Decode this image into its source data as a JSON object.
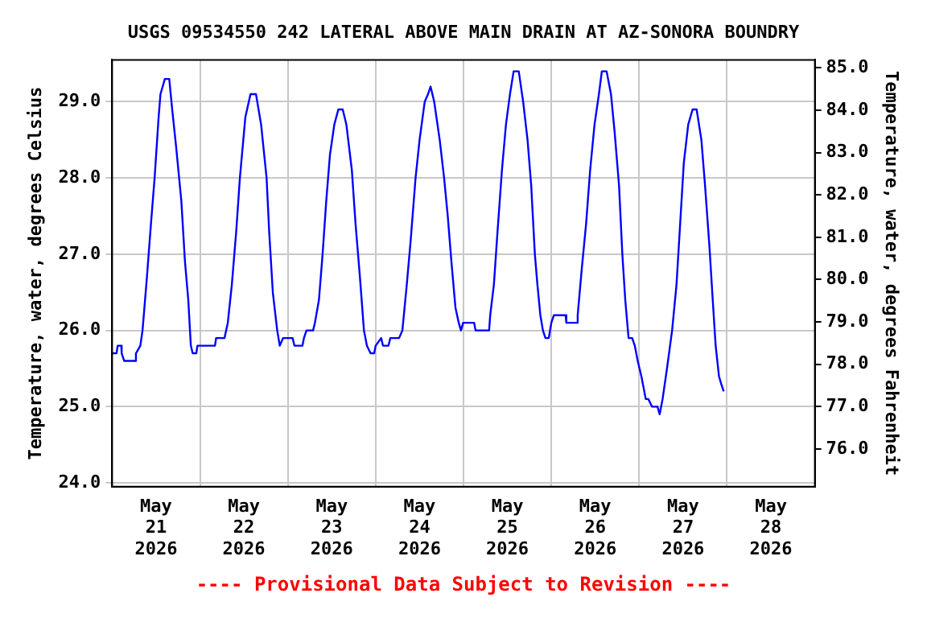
{
  "chart_data": {
    "type": "line",
    "title": "USGS 09534550 242 LATERAL ABOVE MAIN DRAIN AT AZ-SONORA BOUNDRY",
    "ylabel": "Temperature, water, degrees Celsius",
    "y2label": "Temperature, water, degrees Fahrenheit",
    "annotations": [
      "---- Provisional Data Subject to Revision ----"
    ],
    "x": [
      "2026-05-21T00:00",
      "2026-05-21T01:12",
      "2026-05-21T01:30",
      "2026-05-21T02:30",
      "2026-05-21T02:36",
      "2026-05-21T03:18",
      "2026-05-21T06:18",
      "2026-05-21T06:30",
      "2026-05-21T07:42",
      "2026-05-21T08:18",
      "2026-05-21T09:30",
      "2026-05-21T10:36",
      "2026-05-21T11:36",
      "2026-05-21T12:42",
      "2026-05-21T13:12",
      "2026-05-21T14:24",
      "2026-05-21T15:36",
      "2026-05-21T16:24",
      "2026-05-21T17:30",
      "2026-05-21T18:54",
      "2026-05-21T19:54",
      "2026-05-21T20:48",
      "2026-05-21T21:30",
      "2026-05-21T22:00",
      "2026-05-21T23:00",
      "2026-05-21T23:18",
      "2026-05-22T04:06",
      "2026-05-22T04:24",
      "2026-05-22T06:42",
      "2026-05-22T07:36",
      "2026-05-22T08:42",
      "2026-05-22T09:54",
      "2026-05-22T10:54",
      "2026-05-22T12:24",
      "2026-05-22T13:48",
      "2026-05-22T15:18",
      "2026-05-22T16:42",
      "2026-05-22T18:12",
      "2026-05-22T18:54",
      "2026-05-22T19:54",
      "2026-05-22T21:06",
      "2026-05-22T21:48",
      "2026-05-22T22:42",
      "2026-05-23T01:18",
      "2026-05-23T01:48",
      "2026-05-23T04:00",
      "2026-05-23T04:24",
      "2026-05-23T05:06",
      "2026-05-23T06:54",
      "2026-05-23T07:24",
      "2026-05-23T08:30",
      "2026-05-23T09:30",
      "2026-05-23T10:30",
      "2026-05-23T11:30",
      "2026-05-23T12:42",
      "2026-05-23T13:48",
      "2026-05-23T15:00",
      "2026-05-23T16:00",
      "2026-05-23T17:30",
      "2026-05-23T18:30",
      "2026-05-23T19:42",
      "2026-05-23T20:48",
      "2026-05-23T21:36",
      "2026-05-23T22:36",
      "2026-05-23T23:36",
      "2026-05-24T00:00",
      "2026-05-24T01:30",
      "2026-05-24T02:00",
      "2026-05-24T03:30",
      "2026-05-24T04:00",
      "2026-05-24T06:24",
      "2026-05-24T07:18",
      "2026-05-24T08:30",
      "2026-05-24T09:36",
      "2026-05-24T10:54",
      "2026-05-24T12:00",
      "2026-05-24T13:24",
      "2026-05-24T14:18",
      "2026-05-24T15:00",
      "2026-05-24T16:00",
      "2026-05-24T17:30",
      "2026-05-24T18:42",
      "2026-05-24T19:42",
      "2026-05-24T20:42",
      "2026-05-24T21:48",
      "2026-05-24T22:42",
      "2026-05-24T23:18",
      "2026-05-24T23:54",
      "2026-05-25T02:54",
      "2026-05-25T03:18",
      "2026-05-25T07:00",
      "2026-05-25T07:18",
      "2026-05-25T08:18",
      "2026-05-25T09:18",
      "2026-05-25T10:30",
      "2026-05-25T11:36",
      "2026-05-25T12:42",
      "2026-05-25T13:42",
      "2026-05-25T15:06",
      "2026-05-25T16:18",
      "2026-05-25T17:30",
      "2026-05-25T18:30",
      "2026-05-25T19:30",
      "2026-05-25T20:12",
      "2026-05-25T21:00",
      "2026-05-25T21:42",
      "2026-05-25T22:24",
      "2026-05-25T23:18",
      "2026-05-26T00:00",
      "2026-05-26T00:42",
      "2026-05-26T03:54",
      "2026-05-26T04:06",
      "2026-05-26T06:48",
      "2026-05-26T07:12",
      "2026-05-26T08:18",
      "2026-05-26T09:30",
      "2026-05-26T10:36",
      "2026-05-26T11:48",
      "2026-05-26T13:00",
      "2026-05-26T13:48",
      "2026-05-26T15:06",
      "2026-05-26T16:18",
      "2026-05-26T17:18",
      "2026-05-26T18:30",
      "2026-05-26T19:24",
      "2026-05-26T20:12",
      "2026-05-26T21:06",
      "2026-05-26T22:06",
      "2026-05-26T22:48",
      "2026-05-26T23:36",
      "2026-05-27T00:36",
      "2026-05-27T01:48",
      "2026-05-27T02:30",
      "2026-05-27T03:30",
      "2026-05-27T05:00",
      "2026-05-27T05:36",
      "2026-05-27T06:24",
      "2026-05-27T07:36",
      "2026-05-27T09:00",
      "2026-05-27T10:12",
      "2026-05-27T11:12",
      "2026-05-27T12:12",
      "2026-05-27T13:24",
      "2026-05-27T14:36",
      "2026-05-27T15:42",
      "2026-05-27T17:00",
      "2026-05-27T18:00",
      "2026-05-27T19:12",
      "2026-05-27T20:06",
      "2026-05-27T20:54",
      "2026-05-27T21:48",
      "2026-05-27T22:24",
      "2026-05-27T23:06"
    ],
    "series": [
      {
        "color": "#0000ff",
        "values": [
          25.7,
          25.7,
          25.8,
          25.8,
          25.7,
          25.6,
          25.6,
          25.7,
          25.8,
          26.0,
          26.7,
          27.4,
          28.0,
          28.8,
          29.1,
          29.3,
          29.3,
          28.9,
          28.4,
          27.7,
          26.9,
          26.4,
          25.8,
          25.7,
          25.7,
          25.8,
          25.8,
          25.9,
          25.9,
          26.1,
          26.6,
          27.3,
          28.0,
          28.8,
          29.1,
          29.1,
          28.7,
          28.0,
          27.3,
          26.5,
          26.0,
          25.8,
          25.9,
          25.9,
          25.8,
          25.8,
          25.9,
          26.0,
          26.0,
          26.1,
          26.4,
          27.0,
          27.7,
          28.3,
          28.7,
          28.9,
          28.9,
          28.7,
          28.1,
          27.4,
          26.7,
          26.0,
          25.8,
          25.7,
          25.7,
          25.8,
          25.9,
          25.8,
          25.8,
          25.9,
          25.9,
          26.0,
          26.6,
          27.2,
          28.0,
          28.5,
          29.0,
          29.1,
          29.2,
          29.0,
          28.5,
          28.0,
          27.5,
          26.9,
          26.3,
          26.1,
          26.0,
          26.1,
          26.1,
          26.0,
          26.0,
          26.2,
          26.6,
          27.3,
          28.1,
          28.7,
          29.1,
          29.4,
          29.4,
          29.0,
          28.5,
          27.9,
          27.0,
          26.6,
          26.2,
          26.0,
          25.9,
          25.9,
          26.1,
          26.2,
          26.2,
          26.1,
          26.1,
          26.2,
          26.8,
          27.4,
          28.1,
          28.7,
          29.1,
          29.4,
          29.4,
          29.1,
          28.6,
          27.9,
          27.0,
          26.4,
          25.9,
          25.9,
          25.8,
          25.6,
          25.4,
          25.1,
          25.1,
          25.0,
          25.0,
          24.9,
          25.1,
          25.5,
          26.0,
          26.6,
          27.4,
          28.2,
          28.7,
          28.9,
          28.9,
          28.5,
          27.9,
          27.1,
          26.4,
          25.8,
          25.4,
          25.3,
          25.2
        ]
      }
    ],
    "xlim": [
      "2026-05-21T00:00",
      "2026-05-29T00:00"
    ],
    "xticks": [
      {
        "value": "2026-05-21T12:00",
        "label": "May\n21\n2026"
      },
      {
        "value": "2026-05-22T00:00",
        "label": null
      },
      {
        "value": "2026-05-22T12:00",
        "label": "May\n22\n2026"
      },
      {
        "value": "2026-05-23T00:00",
        "label": null
      },
      {
        "value": "2026-05-23T12:00",
        "label": "May\n23\n2026"
      },
      {
        "value": "2026-05-24T00:00",
        "label": null
      },
      {
        "value": "2026-05-24T12:00",
        "label": "May\n24\n2026"
      },
      {
        "value": "2026-05-25T00:00",
        "label": null
      },
      {
        "value": "2026-05-25T12:00",
        "label": "May\n25\n2026"
      },
      {
        "value": "2026-05-26T00:00",
        "label": null
      },
      {
        "value": "2026-05-26T12:00",
        "label": "May\n26\n2026"
      },
      {
        "value": "2026-05-27T00:00",
        "label": null
      },
      {
        "value": "2026-05-27T12:00",
        "label": "May\n27\n2026"
      },
      {
        "value": "2026-05-28T00:00",
        "label": null
      },
      {
        "value": "2026-05-28T12:00",
        "label": "May\n28\n2026"
      }
    ],
    "ylim": [
      23.95,
      29.55
    ],
    "yticks": [
      {
        "value": 24,
        "label": "24.0"
      },
      {
        "value": 25,
        "label": "25.0"
      },
      {
        "value": 26,
        "label": "26.0"
      },
      {
        "value": 27,
        "label": "27.0"
      },
      {
        "value": 28,
        "label": "28.0"
      },
      {
        "value": 29,
        "label": "29.0"
      }
    ],
    "y2lim": [
      75.11,
      85.19
    ],
    "y2ticks": [
      {
        "value": 76,
        "label": "76.0"
      },
      {
        "value": 77,
        "label": "77.0"
      },
      {
        "value": 78,
        "label": "78.0"
      },
      {
        "value": 79,
        "label": "79.0"
      },
      {
        "value": 80,
        "label": "80.0"
      },
      {
        "value": 81,
        "label": "81.0"
      },
      {
        "value": 82,
        "label": "82.0"
      },
      {
        "value": 83,
        "label": "83.0"
      },
      {
        "value": 84,
        "label": "84.0"
      },
      {
        "value": 85,
        "label": "85.0"
      }
    ],
    "grid": true,
    "legend": false
  }
}
